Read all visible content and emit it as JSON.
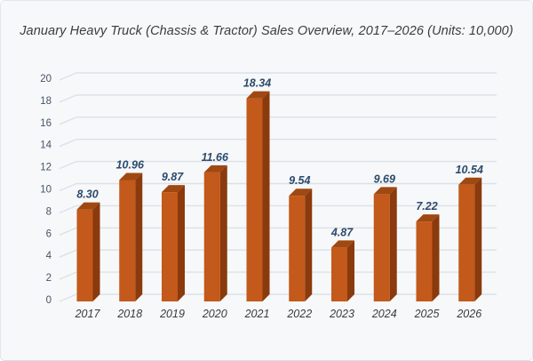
{
  "window": {
    "background": "#F7F8F9",
    "border_color": "#E3E7EE"
  },
  "chart_data": {
    "type": "bar",
    "style": "3d-column",
    "title": "January Heavy Truck (Chassis & Tractor) Sales Overview, 2017–2026 (Units: 10,000)",
    "categories": [
      "2017",
      "2018",
      "2019",
      "2020",
      "2021",
      "2022",
      "2023",
      "2024",
      "2025",
      "2026"
    ],
    "values": [
      8.3,
      10.96,
      9.87,
      11.66,
      18.34,
      9.54,
      4.87,
      9.69,
      7.22,
      10.54
    ],
    "value_labels": [
      "8.30",
      "10.96",
      "9.87",
      "11.66",
      "18.34",
      "9.54",
      "4.87",
      "9.69",
      "7.22",
      "10.54"
    ],
    "xlabel": "",
    "ylabel": "",
    "ylim": [
      0,
      20
    ],
    "yticks": [
      0,
      2,
      4,
      6,
      8,
      10,
      12,
      14,
      16,
      18,
      20
    ],
    "grid": true,
    "legend_position": "none",
    "colors": {
      "bar_front": "#C3591B",
      "bar_side": "#8A3A0C",
      "bar_top": "#A04811",
      "gridline": "#DCE1E9",
      "value_label": "#2B4A6D",
      "y_axis_label": "#44546A",
      "category_label": "#3B3B3B",
      "title": "#3C3C3C"
    }
  }
}
